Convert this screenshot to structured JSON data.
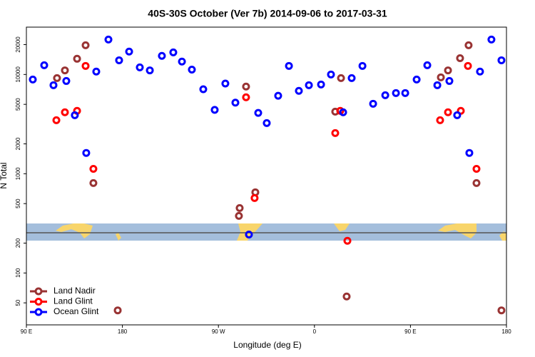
{
  "chart_data": {
    "type": "scatter",
    "title": "40S-30S October (Ver 7b)   2014-09-06 to 2017-03-31",
    "x_label": "Longitude (deg E)",
    "y_label": "N Total",
    "xlim": [
      90,
      540
    ],
    "xticks": [
      {
        "value": 90,
        "label": "90 E"
      },
      180,
      {
        "value": 270,
        "label": "90 W"
      },
      {
        "value": 360,
        "label": "0"
      },
      {
        "value": 450,
        "label": "90 E"
      },
      {
        "value": 540,
        "label": "180"
      }
    ],
    "ylim": [
      30,
      30000
    ],
    "log_y": true,
    "yticks": [
      50,
      100,
      200,
      500,
      1000,
      2000,
      5000,
      10000,
      20000
    ],
    "legend": "lower left",
    "series": [
      {
        "name": "Land Nadir",
        "color": "#993333",
        "x": [
          118.7,
          126.1,
          137.5,
          145.5,
          152.8,
          175.6,
          289.2,
          289.9,
          295.9,
          304.6,
          379.5,
          384.9,
          390.2,
          478.5,
          485.2,
          496.5,
          504.5,
          511.9,
          535.3
        ],
        "values": [
          9200,
          11000,
          14400,
          19700,
          806,
          42,
          376,
          451,
          7550,
          650,
          4220,
          9200,
          58,
          9360,
          11000,
          14600,
          19700,
          806,
          42
        ]
      },
      {
        "name": "Land Glint",
        "color": "#ff0000",
        "x": [
          118.1,
          126.1,
          137.5,
          145.5,
          152.8,
          295.9,
          303.9,
          379.5,
          384.2,
          390.9,
          477.8,
          485.2,
          497.2,
          503.9,
          511.9
        ],
        "values": [
          3460,
          4160,
          4300,
          12200,
          1120,
          5890,
          569,
          2570,
          4300,
          211,
          3460,
          4160,
          4300,
          12200,
          1120
        ]
      },
      {
        "name": "Ocean Glint",
        "color": "#0000ff",
        "x": [
          96.0,
          106.7,
          115.4,
          127.4,
          135.4,
          146.1,
          155.5,
          166.9,
          176.9,
          186.3,
          196.3,
          205.7,
          217.0,
          227.7,
          235.8,
          245.1,
          255.8,
          266.5,
          276.5,
          285.9,
          298.6,
          307.3,
          315.3,
          326.0,
          336.1,
          345.4,
          354.8,
          366.2,
          375.5,
          386.9,
          394.9,
          405.0,
          415.0,
          426.4,
          436.4,
          445.1,
          455.8,
          465.8,
          475.2,
          486.5,
          493.8,
          505.2,
          515.2,
          525.9,
          535.3
        ],
        "values": [
          8900,
          12400,
          7800,
          8600,
          3890,
          1620,
          10700,
          22500,
          13900,
          17000,
          11800,
          11000,
          15400,
          16700,
          13500,
          11200,
          7100,
          4400,
          8100,
          5200,
          244,
          4100,
          3240,
          6100,
          12200,
          6840,
          7800,
          7930,
          10000,
          4160,
          9200,
          12200,
          5070,
          6180,
          6500,
          6500,
          8900,
          12400,
          7800,
          8600,
          3890,
          1620,
          10700,
          22500,
          13900
        ]
      }
    ]
  }
}
